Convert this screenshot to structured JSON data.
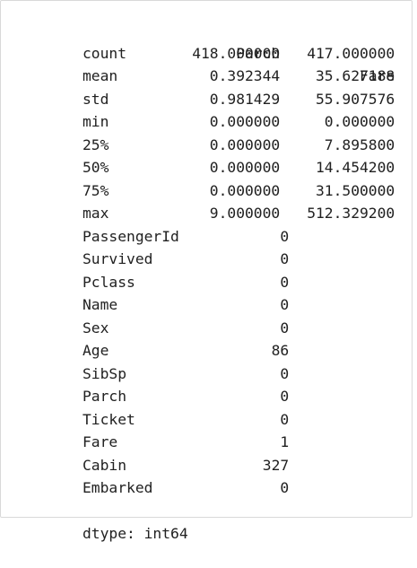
{
  "describe": {
    "columns": [
      "Parch",
      "Fare"
    ],
    "rows": [
      {
        "label": "count",
        "values": [
          "418.000000",
          "417.000000"
        ]
      },
      {
        "label": "mean",
        "values": [
          "0.392344",
          "35.627188"
        ]
      },
      {
        "label": "std",
        "values": [
          "0.981429",
          "55.907576"
        ]
      },
      {
        "label": "min",
        "values": [
          "0.000000",
          "0.000000"
        ]
      },
      {
        "label": "25%",
        "values": [
          "0.000000",
          "7.895800"
        ]
      },
      {
        "label": "50%",
        "values": [
          "0.000000",
          "14.454200"
        ]
      },
      {
        "label": "75%",
        "values": [
          "0.000000",
          "31.500000"
        ]
      },
      {
        "label": "max",
        "values": [
          "9.000000",
          "512.329200"
        ]
      }
    ]
  },
  "nulls": {
    "rows": [
      {
        "label": "PassengerId",
        "value": "0"
      },
      {
        "label": "Survived",
        "value": "0"
      },
      {
        "label": "Pclass",
        "value": "0"
      },
      {
        "label": "Name",
        "value": "0"
      },
      {
        "label": "Sex",
        "value": "0"
      },
      {
        "label": "Age",
        "value": "86"
      },
      {
        "label": "SibSp",
        "value": "0"
      },
      {
        "label": "Parch",
        "value": "0"
      },
      {
        "label": "Ticket",
        "value": "0"
      },
      {
        "label": "Fare",
        "value": "1"
      },
      {
        "label": "Cabin",
        "value": "327"
      },
      {
        "label": "Embarked",
        "value": "0"
      }
    ],
    "dtype": "dtype: int64"
  }
}
